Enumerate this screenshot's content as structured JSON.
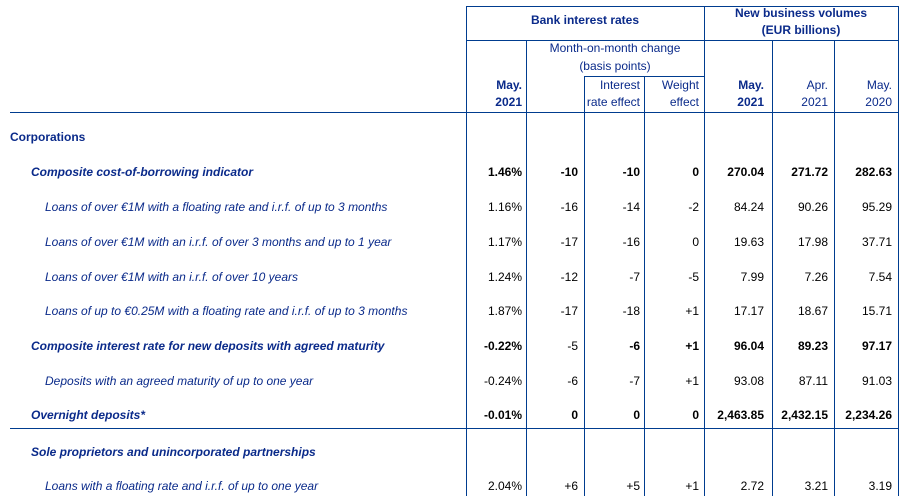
{
  "header": {
    "bank_interest_rates": "Bank interest rates",
    "new_business_volumes": "New business volumes",
    "eur_billions": "(EUR billions)",
    "mom_change": "Month-on-month change",
    "basis_points": "(basis points)",
    "col_may_a": "May.",
    "col_2021_a": "2021",
    "interest": "Interest",
    "rate_effect": "rate effect",
    "weight": "Weight",
    "effect": "effect",
    "col_may_b": "May.",
    "col_2021_b": "2021",
    "col_apr": "Apr.",
    "col_2021_c": "2021",
    "col_may_c": "May.",
    "col_2020": "2020"
  },
  "section_corporations": "Corporations",
  "rows": [
    {
      "label": "Composite cost-of-borrowing indicator",
      "style": "bold",
      "values": [
        "1.46%",
        "-10",
        "-10",
        "0",
        "270.04",
        "271.72",
        "282.63"
      ]
    },
    {
      "label": "Loans of over €1M with a floating rate and i.r.f. of up to 3 months",
      "style": "sub",
      "values": [
        "1.16%",
        "-16",
        "-14",
        "-2",
        "84.24",
        "90.26",
        "95.29"
      ]
    },
    {
      "label": "Loans of over €1M with an i.r.f. of over 3 months and up to 1 year",
      "style": "sub",
      "values": [
        "1.17%",
        "-17",
        "-16",
        "0",
        "19.63",
        "17.98",
        "37.71"
      ]
    },
    {
      "label": "Loans of over €1M with an i.r.f. of over 10 years",
      "style": "sub",
      "values": [
        "1.24%",
        "-12",
        "-7",
        "-5",
        "7.99",
        "7.26",
        "7.54"
      ]
    },
    {
      "label": "Loans of up to €0.25M with a floating rate and i.r.f. of up to 3 months",
      "style": "sub",
      "values": [
        "1.87%",
        "-17",
        "-18",
        "+1",
        "17.17",
        "18.67",
        "15.71"
      ]
    },
    {
      "label": "Composite interest rate for new deposits with agreed maturity",
      "style": "bold",
      "values": [
        "-0.22%",
        "-5",
        "-6",
        "+1",
        "96.04",
        "89.23",
        "97.17"
      ]
    },
    {
      "label": "Deposits with an agreed maturity of up to one year",
      "style": "sub",
      "values": [
        "-0.24%",
        "-6",
        "-7",
        "+1",
        "93.08",
        "87.11",
        "91.03"
      ]
    },
    {
      "label": "Overnight deposits*",
      "style": "bold",
      "values": [
        "-0.01%",
        "0",
        "0",
        "0",
        "2,463.85",
        "2,432.15",
        "2,234.26"
      ]
    }
  ],
  "section_sole": "Sole proprietors and unincorporated partnerships",
  "last_row": {
    "label": "Loans with a floating rate and i.r.f. of up to one year",
    "style": "sub",
    "values": [
      "2.04%",
      "+6",
      "+5",
      "+1",
      "2.72",
      "3.21",
      "3.19"
    ]
  }
}
